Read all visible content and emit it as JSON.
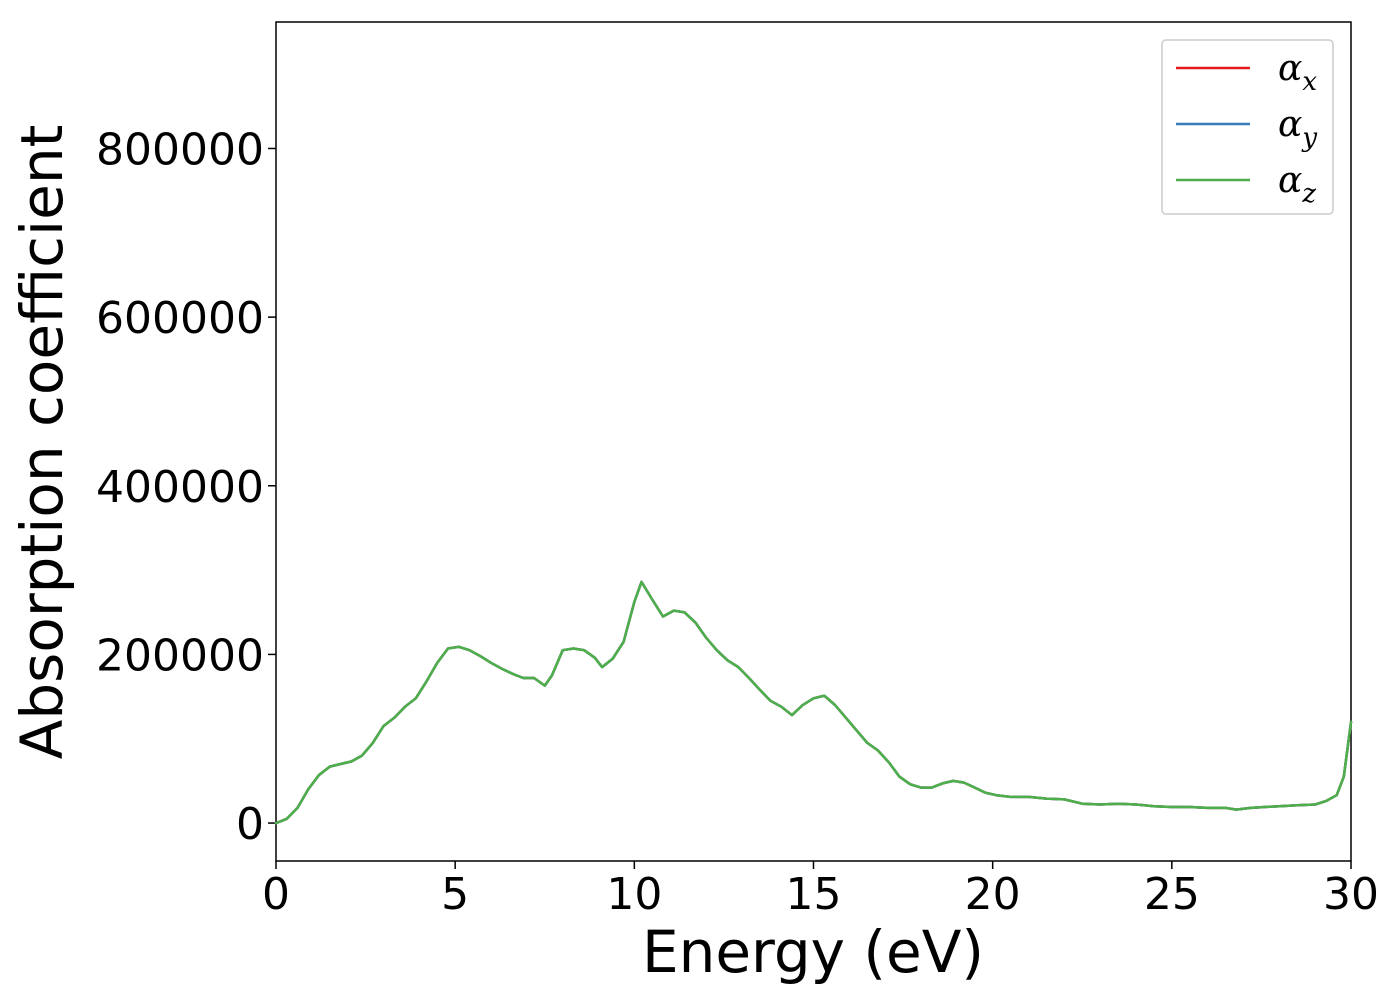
{
  "chart_data": {
    "type": "line",
    "title": "",
    "xlabel": "Energy (eV)",
    "ylabel": "Absorption coefficient",
    "xlim": [
      0,
      30
    ],
    "ylim": [
      -45000,
      950000
    ],
    "xticks": [
      0,
      5,
      10,
      15,
      20,
      25,
      30
    ],
    "yticks": [
      0,
      200000,
      400000,
      600000,
      800000
    ],
    "xtick_labels": [
      "0",
      "5",
      "10",
      "15",
      "20",
      "25",
      "30"
    ],
    "ytick_labels": [
      "0",
      "200000",
      "400000",
      "600000",
      "800000"
    ],
    "grid": false,
    "legend": {
      "placement": "top-right"
    },
    "series": [
      {
        "name": "α",
        "subscript": "x",
        "color": "#e41a1c"
      },
      {
        "name": "α",
        "subscript": "y",
        "color": "#377eb8"
      },
      {
        "name": "α",
        "subscript": "z",
        "color": "#4daf4a"
      }
    ],
    "x": [
      0,
      0.3,
      0.6,
      0.9,
      1.2,
      1.5,
      1.8,
      2.1,
      2.4,
      2.7,
      3.0,
      3.3,
      3.6,
      3.9,
      4.2,
      4.5,
      4.8,
      5.1,
      5.4,
      5.7,
      6.0,
      6.3,
      6.6,
      6.9,
      7.2,
      7.5,
      7.7,
      8.0,
      8.3,
      8.6,
      8.9,
      9.1,
      9.4,
      9.7,
      10.0,
      10.2,
      10.5,
      10.8,
      11.1,
      11.4,
      11.7,
      12.0,
      12.3,
      12.6,
      12.9,
      13.2,
      13.5,
      13.8,
      14.1,
      14.4,
      14.7,
      15.0,
      15.3,
      15.6,
      15.9,
      16.2,
      16.5,
      16.8,
      17.1,
      17.4,
      17.7,
      18.0,
      18.3,
      18.6,
      18.9,
      19.2,
      19.5,
      19.8,
      20.1,
      20.5,
      21.0,
      21.5,
      22.0,
      22.5,
      23.0,
      23.5,
      24.0,
      24.5,
      25.0,
      25.5,
      26.0,
      26.5,
      26.8,
      27.2,
      27.6,
      28.0,
      28.5,
      29.0,
      29.3,
      29.6,
      29.8,
      30.0
    ],
    "y_shared": [
      0,
      5000,
      18000,
      40000,
      57000,
      67000,
      70000,
      73000,
      80000,
      95000,
      115000,
      125000,
      138000,
      148000,
      168000,
      190000,
      207000,
      209000,
      205000,
      198000,
      190000,
      183000,
      177000,
      172000,
      172000,
      163000,
      175000,
      205000,
      207000,
      205000,
      196000,
      185000,
      195000,
      215000,
      262000,
      286000,
      265000,
      245000,
      252000,
      250000,
      238000,
      220000,
      205000,
      193000,
      185000,
      172000,
      158000,
      145000,
      138000,
      128000,
      140000,
      148000,
      151000,
      140000,
      125000,
      110000,
      95000,
      86000,
      72000,
      55000,
      46000,
      42000,
      42000,
      47000,
      50000,
      48000,
      42000,
      36000,
      33000,
      31000,
      31000,
      29000,
      28000,
      23000,
      22000,
      23000,
      22000,
      20000,
      19000,
      19000,
      18000,
      18000,
      16000,
      18000,
      19000,
      20000,
      21000,
      22000,
      26000,
      33000,
      55000,
      120000
    ]
  }
}
